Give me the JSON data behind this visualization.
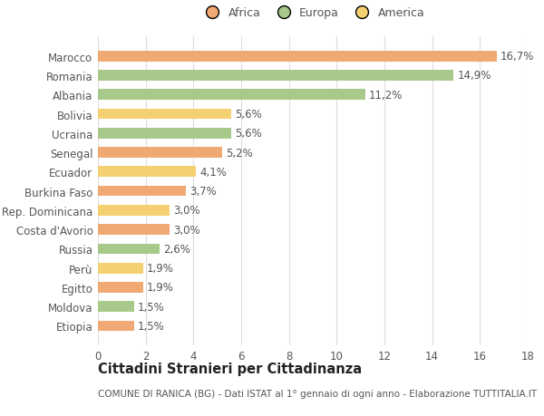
{
  "categories": [
    "Marocco",
    "Romania",
    "Albania",
    "Bolivia",
    "Ucraina",
    "Senegal",
    "Ecuador",
    "Burkina Faso",
    "Rep. Dominicana",
    "Costa d'Avorio",
    "Russia",
    "Perù",
    "Egitto",
    "Moldova",
    "Etiopia"
  ],
  "values": [
    16.7,
    14.9,
    11.2,
    5.6,
    5.6,
    5.2,
    4.1,
    3.7,
    3.0,
    3.0,
    2.6,
    1.9,
    1.9,
    1.5,
    1.5
  ],
  "labels": [
    "16,7%",
    "14,9%",
    "11,2%",
    "5,6%",
    "5,6%",
    "5,2%",
    "4,1%",
    "3,7%",
    "3,0%",
    "3,0%",
    "2,6%",
    "1,9%",
    "1,9%",
    "1,5%",
    "1,5%"
  ],
  "colors": [
    "#f0a875",
    "#a8c98a",
    "#a8c98a",
    "#f5d070",
    "#a8c98a",
    "#f0a875",
    "#f5d070",
    "#f0a875",
    "#f5d070",
    "#f0a875",
    "#a8c98a",
    "#f5d070",
    "#f0a875",
    "#a8c98a",
    "#f0a875"
  ],
  "legend": [
    {
      "label": "Africa",
      "color": "#f0a875"
    },
    {
      "label": "Europa",
      "color": "#a8c98a"
    },
    {
      "label": "America",
      "color": "#f5d070"
    }
  ],
  "xlim": [
    0,
    18
  ],
  "xticks": [
    0,
    2,
    4,
    6,
    8,
    10,
    12,
    14,
    16,
    18
  ],
  "title": "Cittadini Stranieri per Cittadinanza",
  "subtitle": "COMUNE DI RANICA (BG) - Dati ISTAT al 1° gennaio di ogni anno - Elaborazione TUTTITALIA.IT",
  "background_color": "#ffffff",
  "grid_color": "#dddddd",
  "bar_height": 0.55,
  "label_fontsize": 8.5,
  "tick_fontsize": 8.5,
  "title_fontsize": 10.5,
  "subtitle_fontsize": 7.5,
  "legend_fontsize": 9
}
